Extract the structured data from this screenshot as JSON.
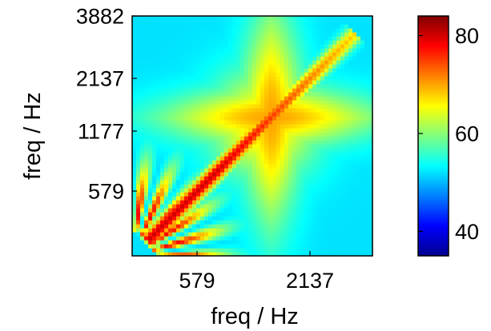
{
  "chart_data": {
    "type": "heatmap",
    "title": "",
    "xlabel": "freq / Hz",
    "ylabel": "freq / Hz",
    "x_ticks": [
      "579",
      "2137"
    ],
    "y_ticks": [
      "579",
      "1177",
      "2137",
      "3882"
    ],
    "colorbar": {
      "range": [
        35,
        84
      ],
      "ticks": [
        40,
        60,
        80
      ],
      "colormap": "jet"
    },
    "grid": false,
    "legend": "colorbar-right",
    "description_of_values": {
      "background_level": 52,
      "edge_level": 47,
      "diagonal_peak": 80,
      "cross_arms_level": 70,
      "low_freq_streak_peak": 78
    }
  }
}
